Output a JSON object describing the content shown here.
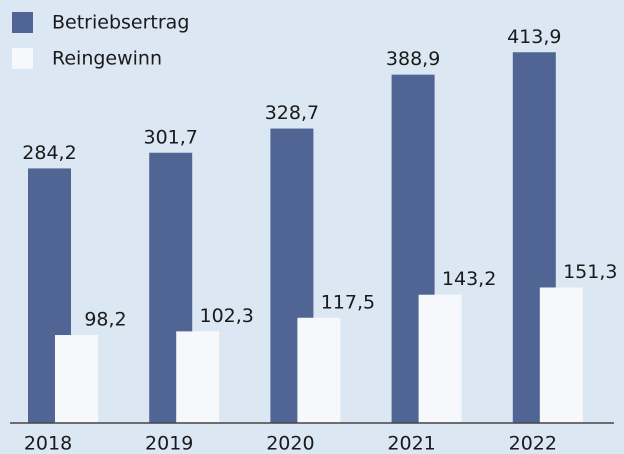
{
  "chart_data": {
    "type": "bar",
    "categories": [
      "2018",
      "2019",
      "2020",
      "2021",
      "2022"
    ],
    "series": [
      {
        "name": "Betriebsertrag",
        "color": "#506593",
        "values": [
          284.2,
          301.7,
          328.7,
          388.9,
          413.9
        ],
        "value_labels": [
          "284,2",
          "301,7",
          "328,7",
          "388,9",
          "413,9"
        ]
      },
      {
        "name": "Reingewinn",
        "color": "#f6f8fb",
        "values": [
          98.2,
          102.3,
          117.5,
          143.2,
          151.3
        ],
        "value_labels": [
          "98,2",
          "102,3",
          "117,5",
          "143,2",
          "151,3"
        ]
      }
    ],
    "ylim": [
      0,
      470
    ],
    "legend": "top-left"
  }
}
